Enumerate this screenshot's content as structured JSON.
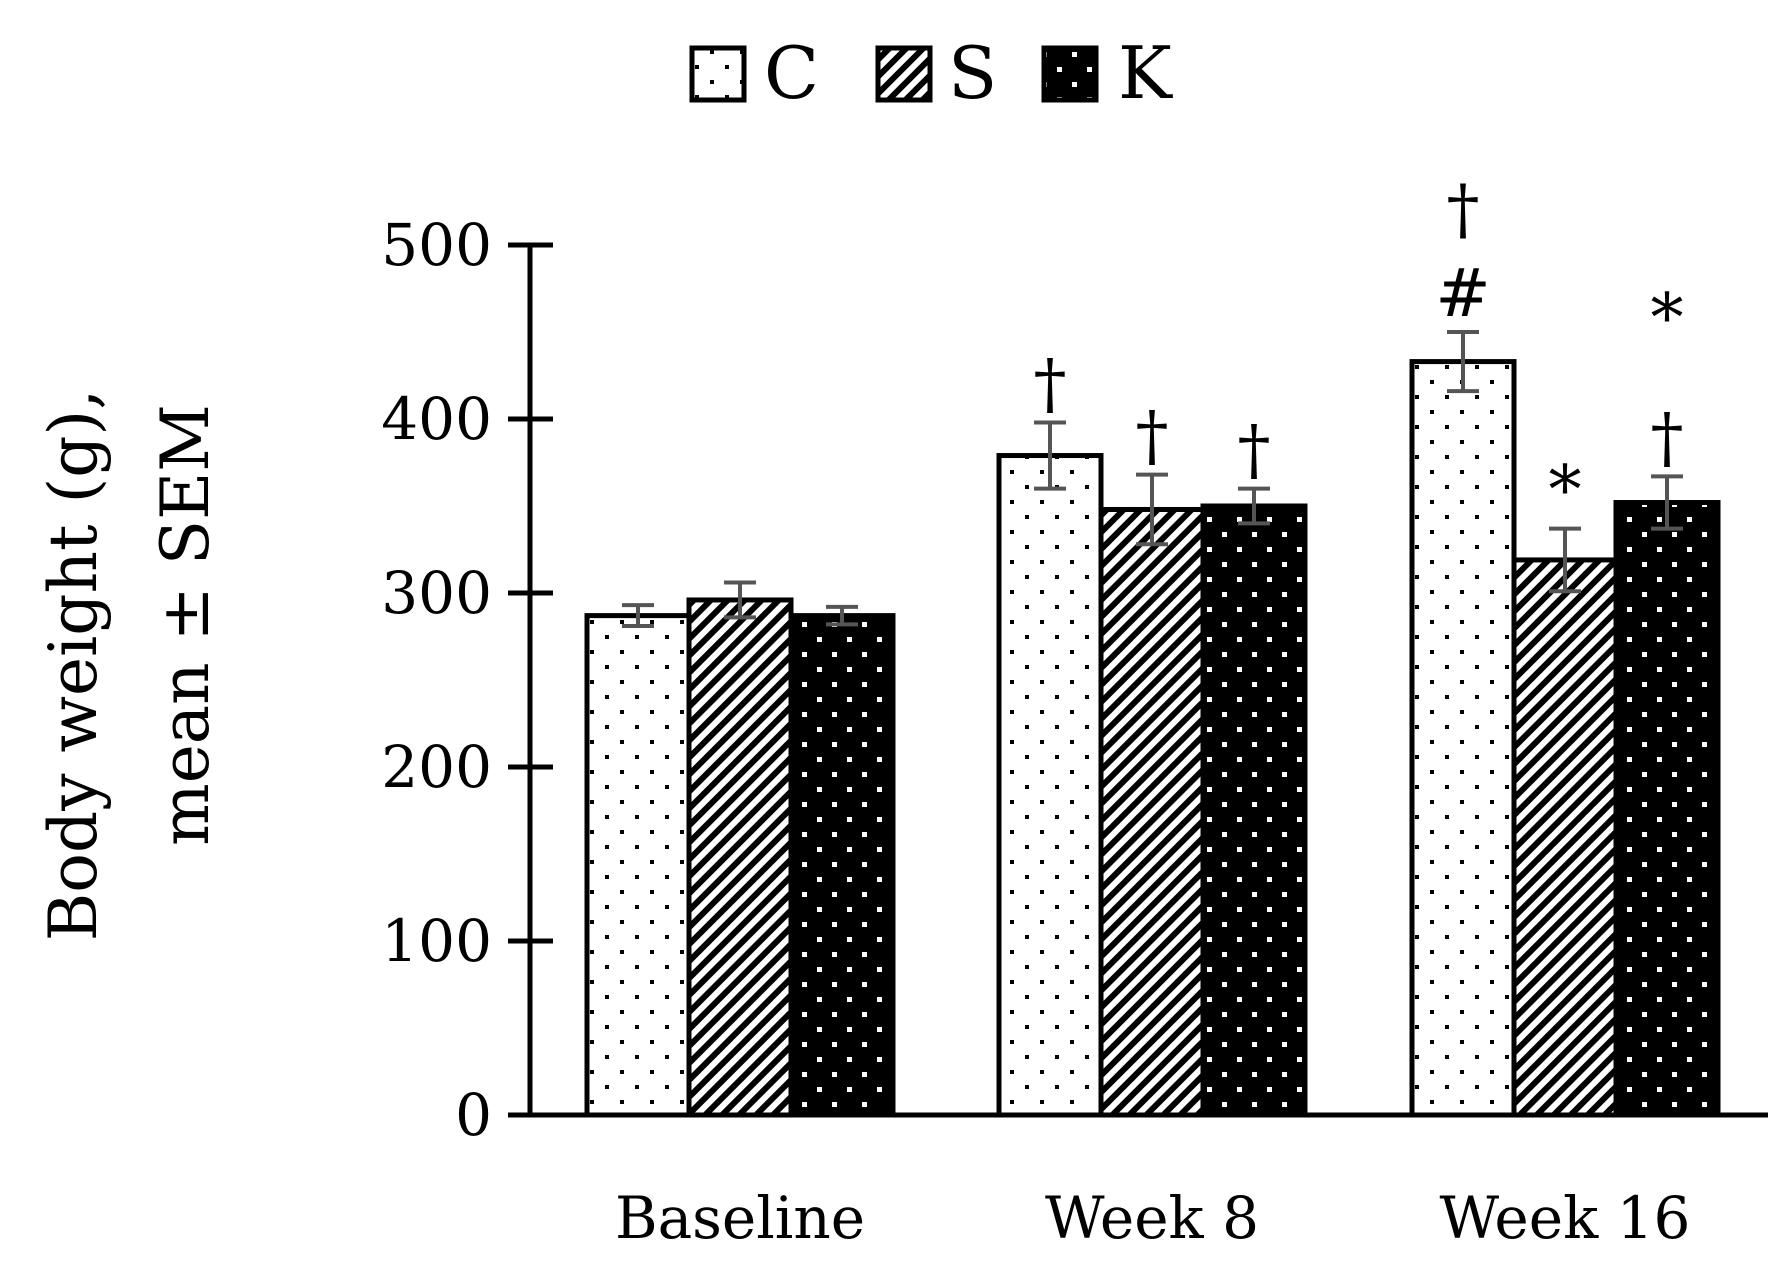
{
  "chart_data": {
    "type": "bar",
    "title": "",
    "xlabel": "",
    "ylabel": [
      "Body weight (g),",
      "mean ± SEM"
    ],
    "ylim": [
      0,
      500
    ],
    "yticks": [
      "0",
      "100",
      "200",
      "300",
      "400",
      "500"
    ],
    "categories": [
      "Baseline",
      "Week 8",
      "Week 16"
    ],
    "legend_placement": "top-center",
    "series": [
      {
        "name": "C",
        "pattern": "sparse-dots",
        "values": [
          287,
          379,
          433
        ],
        "sem": [
          6,
          19,
          17
        ],
        "annotations": [
          [],
          [
            "†"
          ],
          [
            "#",
            "†"
          ]
        ]
      },
      {
        "name": "S",
        "pattern": "diagonal-hatch",
        "values": [
          296,
          348,
          319
        ],
        "sem": [
          10,
          20,
          18
        ],
        "annotations": [
          [],
          [
            "†"
          ],
          [
            "*"
          ]
        ]
      },
      {
        "name": "K",
        "pattern": "black-dots",
        "values": [
          287,
          350,
          352
        ],
        "sem": [
          5,
          10,
          15
        ],
        "annotations": [
          [],
          [
            "†"
          ],
          [
            "†",
            "*"
          ]
        ]
      }
    ]
  },
  "colors": {
    "axis": "#000000",
    "errorbar": "#555555",
    "bar_light": "#ffffff",
    "bar_dark": "#000000"
  }
}
